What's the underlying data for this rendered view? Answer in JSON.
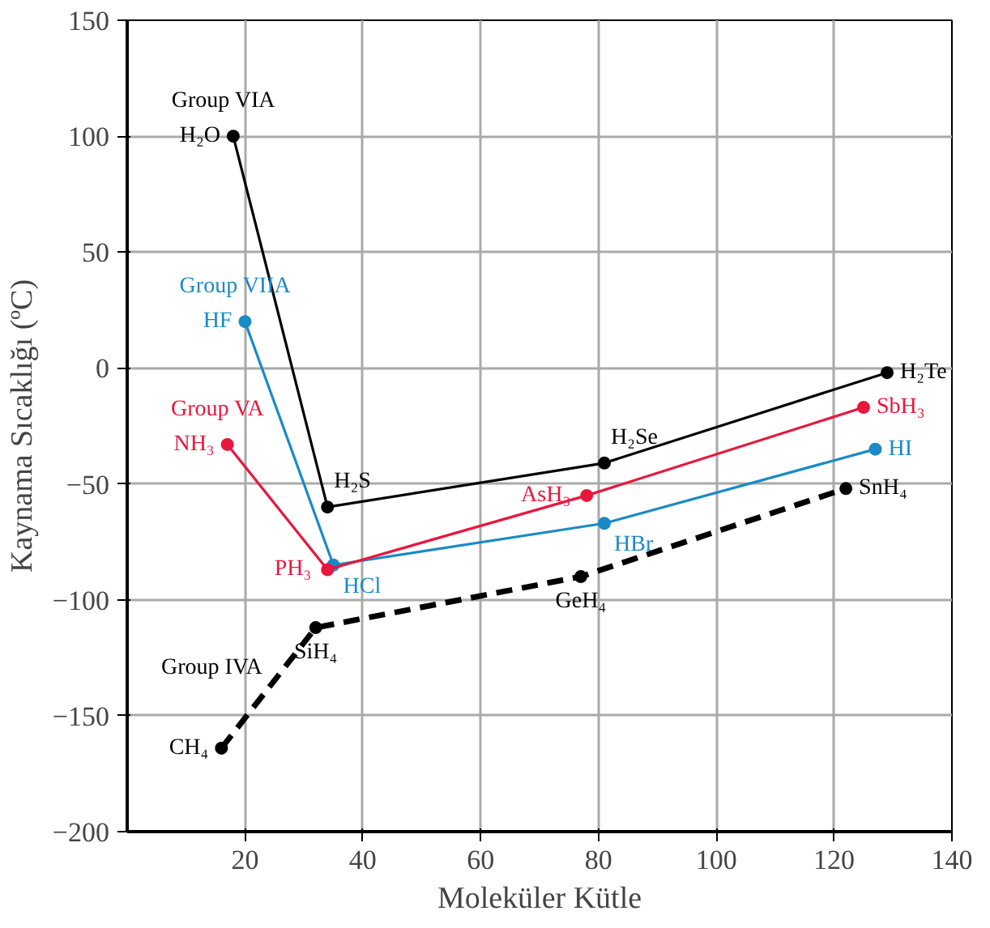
{
  "chart_data": {
    "type": "line",
    "xlabel": "Moleküler Kütle",
    "ylabel": "Kaynama Sıcaklığı (ºC)",
    "xlim": [
      0,
      140
    ],
    "ylim": [
      -200,
      150
    ],
    "xticks": [
      20,
      40,
      60,
      80,
      100,
      120,
      140
    ],
    "yticks": [
      -200,
      -150,
      -100,
      -50,
      0,
      50,
      100,
      150
    ],
    "grid": true,
    "legend": false,
    "marker": "circle",
    "series": [
      {
        "name": "Group VIA",
        "color": "#000000",
        "x": [
          18,
          34,
          81,
          129
        ],
        "values": [
          100,
          -60,
          -41,
          -2
        ],
        "line_style": "solid"
      },
      {
        "name": "Group VIIA",
        "color": "#1a8ac6",
        "x": [
          20,
          35,
          81,
          127
        ],
        "values": [
          20,
          -85,
          -67,
          -35
        ],
        "line_style": "solid"
      },
      {
        "name": "Group VA",
        "color": "#e8173c",
        "x": [
          17,
          34,
          78,
          125
        ],
        "values": [
          -33,
          -87,
          -55,
          -17
        ],
        "line_style": "solid"
      },
      {
        "name": "Group IVA",
        "color": "#000000",
        "x": [
          16,
          32,
          77,
          122
        ],
        "values": [
          -164,
          -112,
          -90,
          -52
        ],
        "line_style": "dashed"
      }
    ],
    "annotations": [
      {
        "text": "H₂O",
        "x": 18,
        "y": 100
      },
      {
        "text": "H₂S",
        "x": 34,
        "y": -60
      },
      {
        "text": "H₂Se",
        "x": 81,
        "y": -41
      },
      {
        "text": "H₂Te",
        "x": 129,
        "y": -2
      },
      {
        "text": "HF",
        "x": 20,
        "y": 20
      },
      {
        "text": "HCl",
        "x": 35,
        "y": -85
      },
      {
        "text": "HBr",
        "x": 81,
        "y": -67
      },
      {
        "text": "HI",
        "x": 127,
        "y": -35
      },
      {
        "text": "NH₃",
        "x": 17,
        "y": -33
      },
      {
        "text": "PH₃",
        "x": 34,
        "y": -87
      },
      {
        "text": "AsH₃",
        "x": 78,
        "y": -55
      },
      {
        "text": "SbH₃",
        "x": 125,
        "y": -17
      },
      {
        "text": "CH₄",
        "x": 16,
        "y": -164
      },
      {
        "text": "SiH₄",
        "x": 32,
        "y": -112
      },
      {
        "text": "GeH₄",
        "x": 77,
        "y": -90
      },
      {
        "text": "SnH₄",
        "x": 122,
        "y": -52
      }
    ]
  }
}
